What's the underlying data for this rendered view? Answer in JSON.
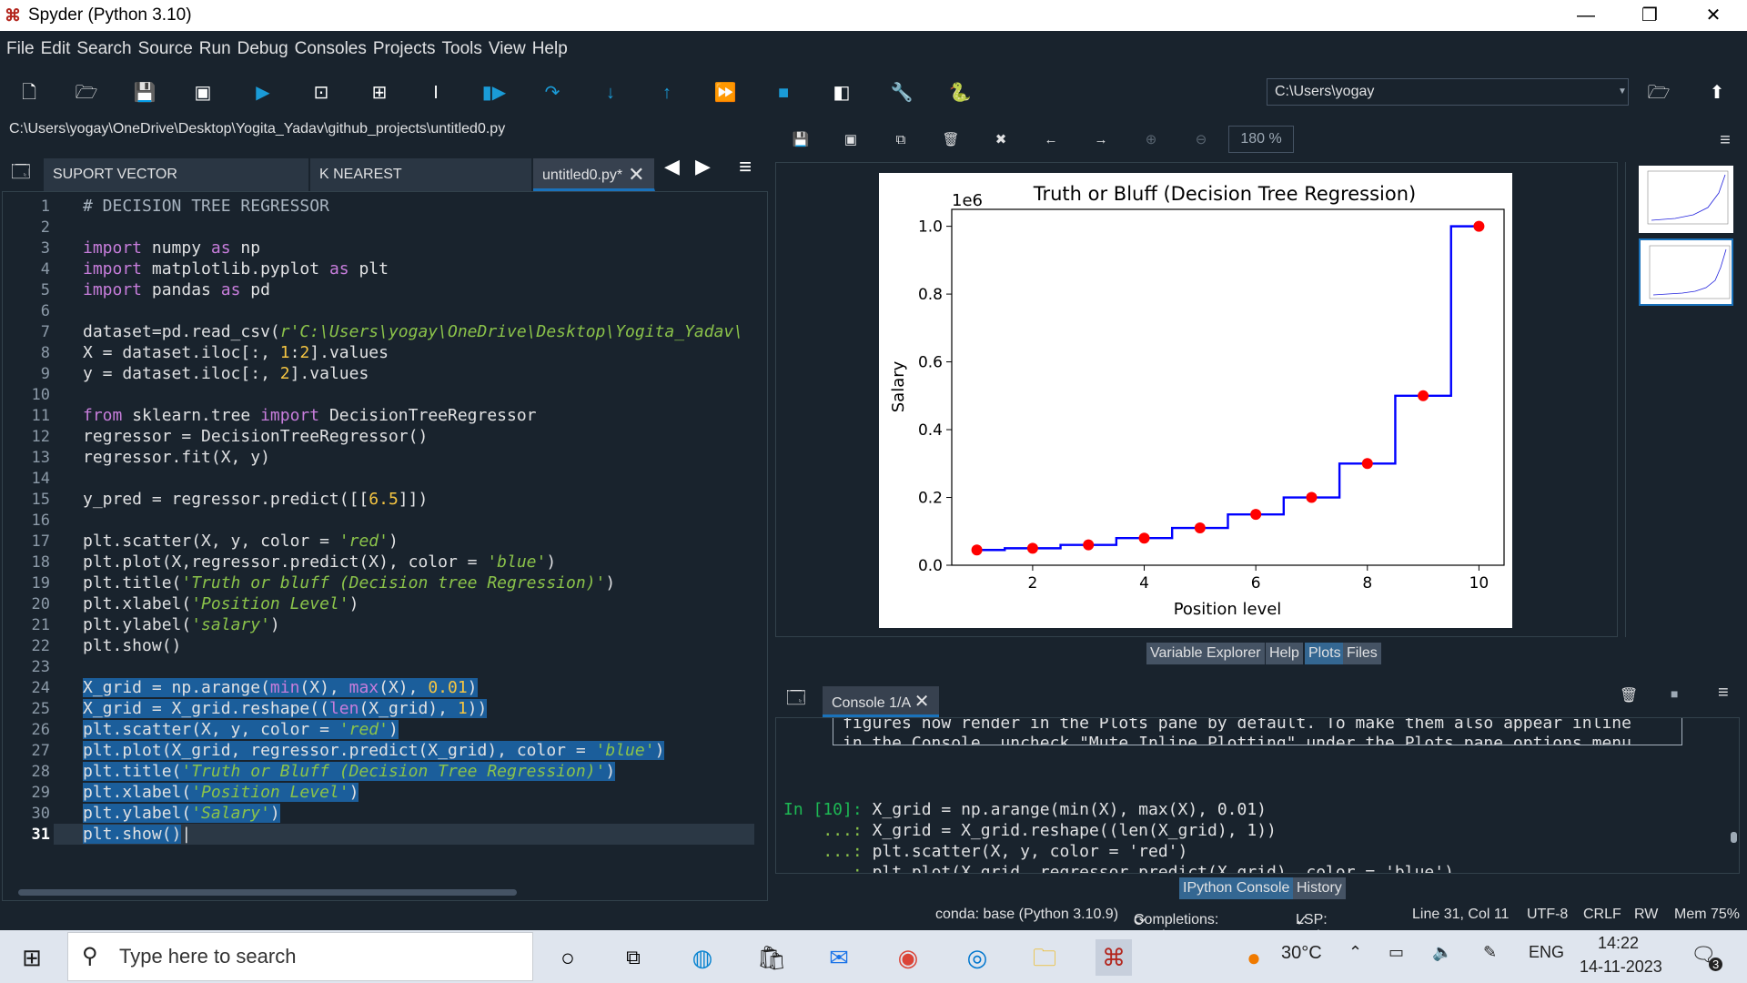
{
  "window": {
    "title": "Spyder (Python 3.10)",
    "min": "—",
    "restore": "❐",
    "close": "✕"
  },
  "menu": [
    "File",
    "Edit",
    "Search",
    "Source",
    "Run",
    "Debug",
    "Consoles",
    "Projects",
    "Tools",
    "View",
    "Help"
  ],
  "toolbar": {
    "cwd": "C:\\Users\\yogay"
  },
  "editor": {
    "filepath": "C:\\Users\\yogay\\OneDrive\\Desktop\\Yogita_Yadav\\github_projects\\untitled0.py",
    "tabs": [
      {
        "label": "SUPORT VECTOR REGRESSION.py",
        "close": "✕"
      },
      {
        "label": "K NEAREST NEIGHBORS.py",
        "close": "✕"
      },
      {
        "label": "untitled0.py*",
        "close": "✕"
      }
    ],
    "line_numbers": [
      "1",
      "2",
      "3",
      "4",
      "5",
      "6",
      "7",
      "8",
      "9",
      "10",
      "11",
      "12",
      "13",
      "14",
      "15",
      "16",
      "17",
      "18",
      "19",
      "20",
      "21",
      "22",
      "23",
      "24",
      "25",
      "26",
      "27",
      "28",
      "29",
      "30",
      "31"
    ]
  },
  "plots": {
    "zoom": "180 %",
    "figure": {
      "title": "Truth or Bluff (Decision Tree Regression)",
      "xlabel": "Position level",
      "ylabel": "Salary",
      "offset": "1e6"
    }
  },
  "chart_data": {
    "type": "scatter",
    "title": "Truth or Bluff (Decision Tree Regression)",
    "xlabel": "Position level",
    "ylabel": "Salary",
    "offset_label": "1e6",
    "xlim": [
      0.55,
      10.45
    ],
    "ylim": [
      0,
      1.05
    ],
    "x_ticks": [
      "2",
      "4",
      "6",
      "8",
      "10"
    ],
    "y_ticks": [
      "0.0",
      "0.2",
      "0.4",
      "0.6",
      "0.8",
      "1.0"
    ],
    "series": [
      {
        "type": "scatter",
        "color": "#ff0000",
        "x": [
          1,
          2,
          3,
          4,
          5,
          6,
          7,
          8,
          9,
          10
        ],
        "y": [
          0.045,
          0.05,
          0.06,
          0.08,
          0.11,
          0.15,
          0.2,
          0.3,
          0.5,
          1.0
        ]
      },
      {
        "type": "step",
        "color": "#0000ff",
        "x": [
          1,
          2,
          3,
          4,
          5,
          6,
          7,
          8,
          9,
          10
        ],
        "y": [
          0.045,
          0.05,
          0.06,
          0.08,
          0.11,
          0.15,
          0.2,
          0.3,
          0.5,
          1.0
        ]
      }
    ]
  },
  "pane_tabs": [
    "Variable Explorer",
    "Help",
    "Plots",
    "Files"
  ],
  "console": {
    "tab": "Console 1/A",
    "tab_close": "✕",
    "note_line1": "figures now render in the Plots pane by default. To make them also appear inline",
    "note_line2": "in the Console, uncheck \"Mute Inline Plotting\" under the Plots pane options menu.",
    "prompt": "In [10]:",
    "cont": "...:",
    "lines": [
      "X_grid = np.arange(min(X), max(X), 0.01)",
      "X_grid = X_grid.reshape((len(X_grid), 1))",
      "plt.scatter(X, y, color = 'red')",
      "plt.plot(X_grid, regressor.predict(X_grid), color = 'blue')"
    ]
  },
  "console_tabs": [
    "IPython Console",
    "History"
  ],
  "status": {
    "env": "conda: base (Python 3.10.9)",
    "completions": "Completions: conda",
    "lsp": "LSP: Python",
    "position": "Line 31, Col 11",
    "encoding": "UTF-8",
    "eol": "CRLF",
    "rw": "RW",
    "mem": "Mem 75%"
  },
  "taskbar": {
    "search_placeholder": "Type here to search",
    "temp": "30°C",
    "lang": "ENG",
    "time": "14:22",
    "date": "14-11-2023",
    "notif_count": "3"
  }
}
